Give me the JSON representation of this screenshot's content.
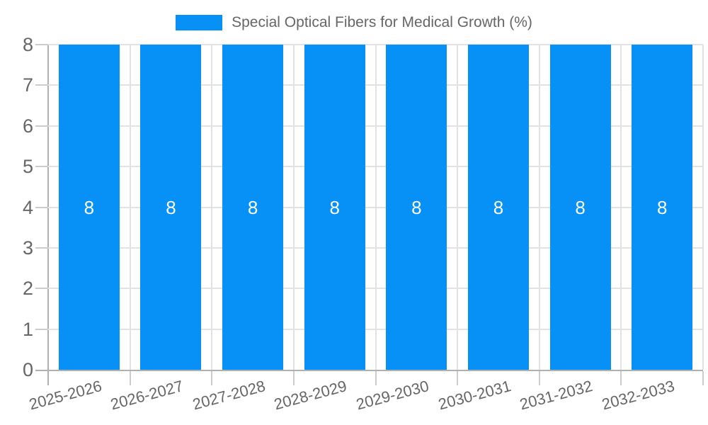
{
  "page": {
    "background": "#ffffff"
  },
  "legend": {
    "label": "Special Optical Fibers for Medical Growth (%)",
    "swatch_color": "#0791f7",
    "position": "top"
  },
  "chart_data": {
    "type": "bar",
    "title": "Special Optical Fibers for Medical Growth (%)",
    "categories": [
      "2025-2026",
      "2026-2027",
      "2027-2028",
      "2028-2029",
      "2029-2030",
      "2030-2031",
      "2031-2032",
      "2032-2033"
    ],
    "values": [
      8,
      8,
      8,
      8,
      8,
      8,
      8,
      8
    ],
    "value_labels": [
      "8",
      "8",
      "8",
      "8",
      "8",
      "8",
      "8",
      "8"
    ],
    "xlabel": "",
    "ylabel": "",
    "ylim": [
      0,
      8
    ],
    "yticks": [
      0,
      1,
      2,
      3,
      4,
      5,
      6,
      7,
      8
    ],
    "grid": true,
    "legend_position": "top",
    "value_label_position": "center"
  },
  "colors": {
    "bar": "#0791f7",
    "grid_line": "#e2e2e2",
    "axis_line": "#b0b0b0",
    "tick_line": "#cccccc",
    "axis_text": "#666666",
    "legend_text": "#666666",
    "bar_value_text": "#ffffff"
  }
}
